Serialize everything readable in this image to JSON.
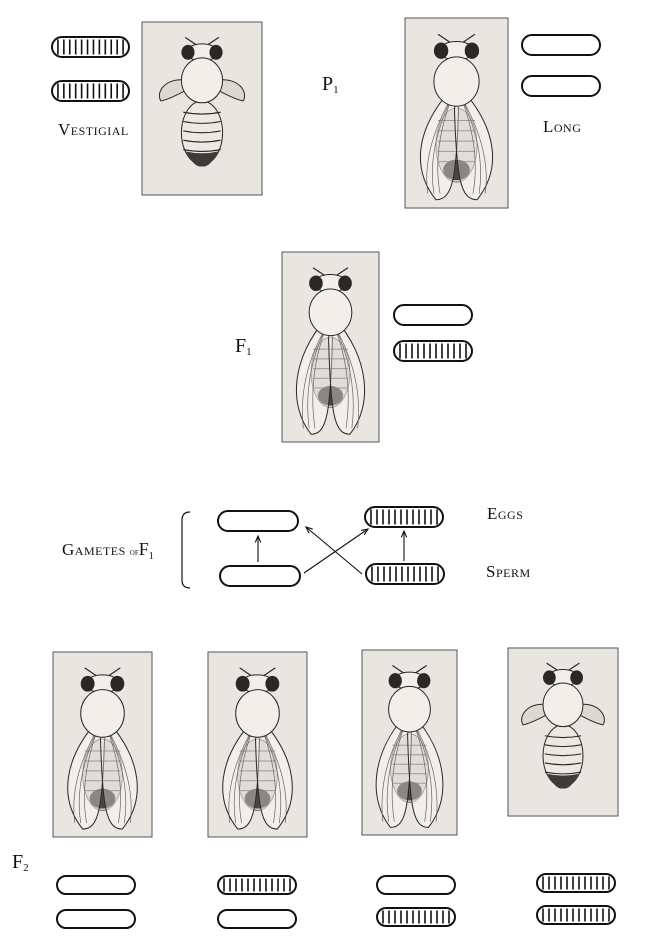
{
  "labels": {
    "p1": "P",
    "p1_sub": "1",
    "f1": "F",
    "f1_sub": "1",
    "f2": "F",
    "f2_sub": "2",
    "vestigial": "Vestigial",
    "long": "Long",
    "gametes": "Gametes",
    "gametes_of": "of",
    "gametes_f": "F",
    "gametes_f_sub": "1",
    "eggs": "Eggs",
    "sperm": "Sperm"
  },
  "colors": {
    "ink": "#111111",
    "plate": "#e9e6e1",
    "plate_edge": "#555555",
    "body": "#f2efea",
    "shade": "#6a6560",
    "dark": "#2a2725"
  },
  "flies": [
    {
      "id": "p1-vestigial",
      "wing": "vestigial"
    },
    {
      "id": "p1-long",
      "wing": "long"
    },
    {
      "id": "f1-hybrid",
      "wing": "long"
    },
    {
      "id": "f2-1",
      "wing": "long"
    },
    {
      "id": "f2-2",
      "wing": "long"
    },
    {
      "id": "f2-3",
      "wing": "long"
    },
    {
      "id": "f2-4",
      "wing": "vestigial"
    }
  ],
  "chromosomes": [
    {
      "id": "p1-vestigial-top",
      "pattern": "striped"
    },
    {
      "id": "p1-vestigial-bottom",
      "pattern": "striped"
    },
    {
      "id": "p1-long-top",
      "pattern": "plain"
    },
    {
      "id": "p1-long-bottom",
      "pattern": "plain"
    },
    {
      "id": "f1-top",
      "pattern": "plain"
    },
    {
      "id": "f1-bottom",
      "pattern": "striped"
    },
    {
      "id": "gamete-egg-left",
      "pattern": "plain"
    },
    {
      "id": "gamete-sperm-left",
      "pattern": "plain"
    },
    {
      "id": "gamete-egg-right",
      "pattern": "striped"
    },
    {
      "id": "gamete-sperm-right",
      "pattern": "striped"
    },
    {
      "id": "f2-1-top",
      "pattern": "plain"
    },
    {
      "id": "f2-1-bottom",
      "pattern": "plain"
    },
    {
      "id": "f2-2-top",
      "pattern": "striped"
    },
    {
      "id": "f2-2-bottom",
      "pattern": "plain"
    },
    {
      "id": "f2-3-top",
      "pattern": "plain"
    },
    {
      "id": "f2-3-bottom",
      "pattern": "striped"
    },
    {
      "id": "f2-4-top",
      "pattern": "striped"
    },
    {
      "id": "f2-4-bottom",
      "pattern": "striped"
    }
  ]
}
